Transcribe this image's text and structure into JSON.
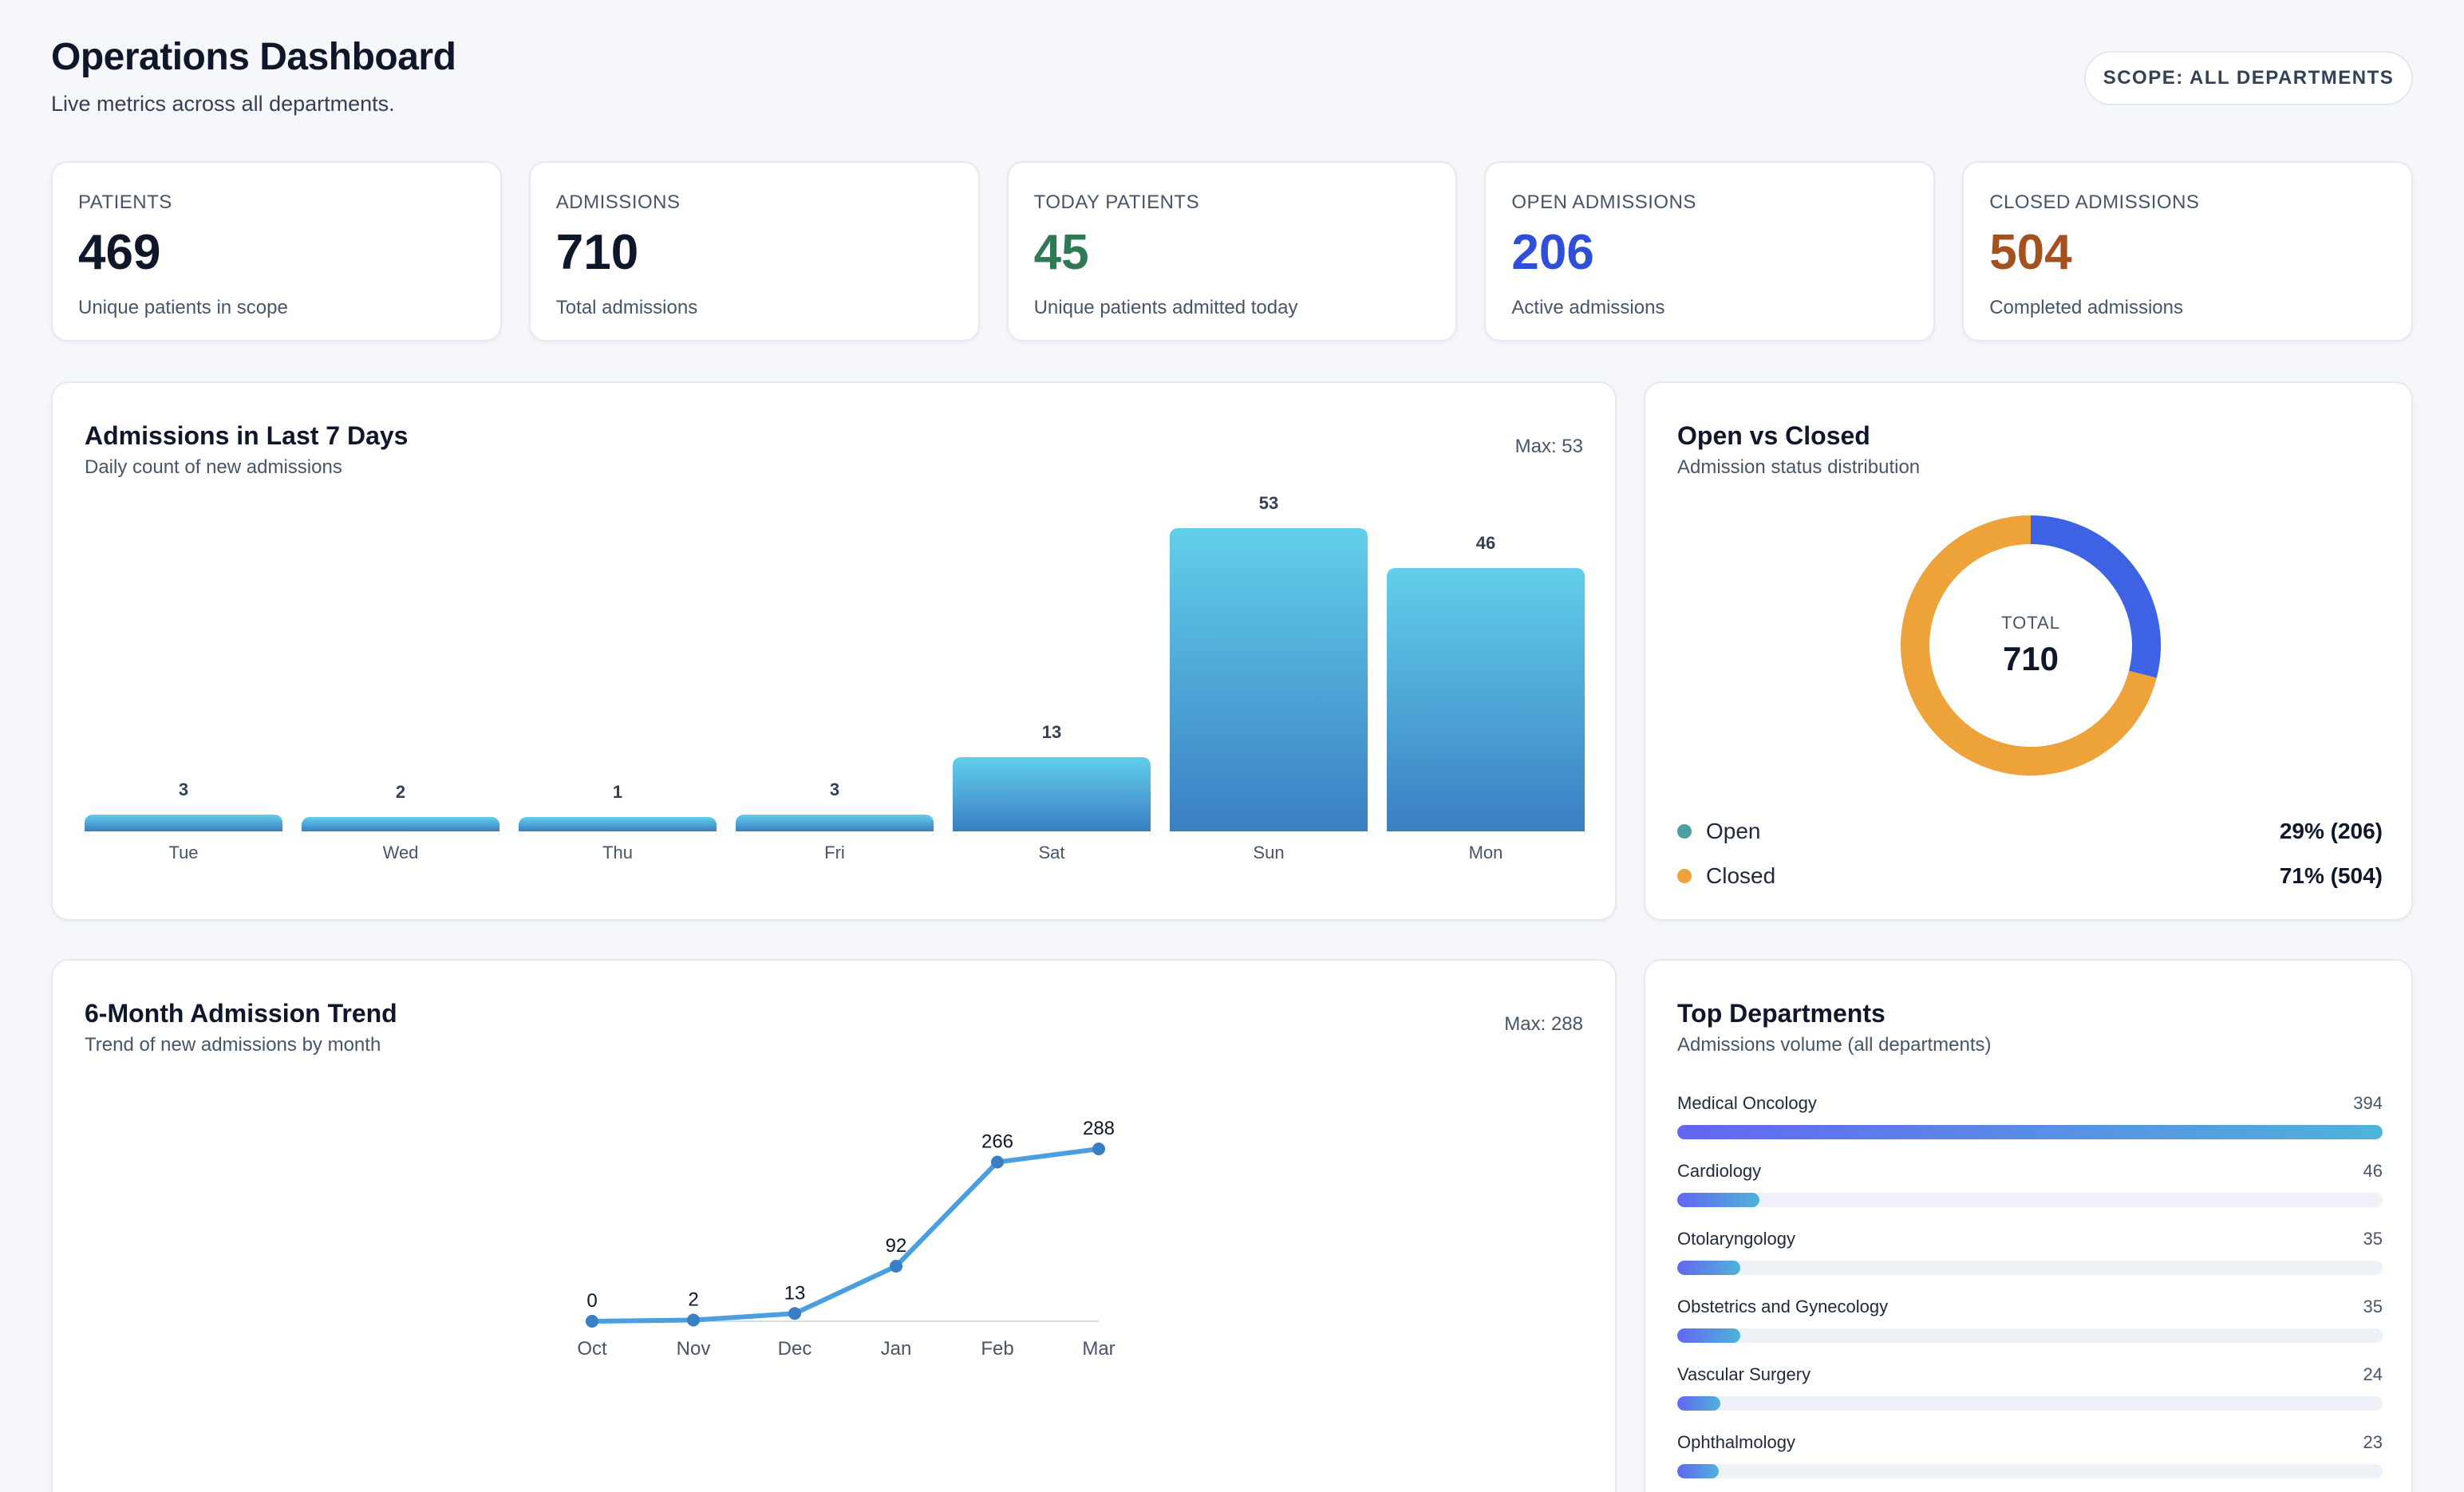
{
  "header": {
    "title": "Operations Dashboard",
    "subtitle": "Live metrics across all departments.",
    "scope_label": "SCOPE: ALL DEPARTMENTS"
  },
  "stats": [
    {
      "label": "PATIENTS",
      "value": "469",
      "desc": "Unique patients in scope",
      "color": "#0f172a"
    },
    {
      "label": "ADMISSIONS",
      "value": "710",
      "desc": "Total admissions",
      "color": "#0f172a"
    },
    {
      "label": "TODAY PATIENTS",
      "value": "45",
      "desc": "Unique patients admitted today",
      "color": "#2f7a55"
    },
    {
      "label": "OPEN ADMISSIONS",
      "value": "206",
      "desc": "Active admissions",
      "color": "#2f4fd8"
    },
    {
      "label": "CLOSED ADMISSIONS",
      "value": "504",
      "desc": "Completed admissions",
      "color": "#a3521f"
    }
  ],
  "admissions_7d": {
    "title": "Admissions in Last 7 Days",
    "subtitle": "Daily count of new admissions",
    "max_label": "Max: 53"
  },
  "status": {
    "title": "Open vs Closed",
    "subtitle": "Admission status distribution",
    "total_label": "TOTAL",
    "total": "710",
    "legend": [
      {
        "name": "Open",
        "value": "29% (206)",
        "dot_color": "#4b9fa3"
      },
      {
        "name": "Closed",
        "value": "71% (504)",
        "dot_color": "#eda23a"
      }
    ],
    "open_color": "#3d63e4",
    "closed_color": "#eda23a"
  },
  "trend": {
    "title": "6-Month Admission Trend",
    "subtitle": "Trend of new admissions by month",
    "max_label": "Max: 288"
  },
  "departments": {
    "title": "Top Departments",
    "subtitle": "Admissions volume (all departments)",
    "items": [
      {
        "name": "Medical Oncology",
        "value": 394
      },
      {
        "name": "Cardiology",
        "value": 46
      },
      {
        "name": "Otolaryngology",
        "value": 35
      },
      {
        "name": "Obstetrics and Gynecology",
        "value": 35
      },
      {
        "name": "Vascular Surgery",
        "value": 24
      },
      {
        "name": "Ophthalmology",
        "value": 23
      }
    ]
  },
  "chart_data": [
    {
      "type": "bar",
      "title": "Admissions in Last 7 Days",
      "categories": [
        "Tue",
        "Wed",
        "Thu",
        "Fri",
        "Sat",
        "Sun",
        "Mon"
      ],
      "values": [
        3,
        2,
        1,
        3,
        13,
        53,
        46
      ],
      "ylim": [
        0,
        53
      ]
    },
    {
      "type": "pie",
      "title": "Open vs Closed",
      "categories": [
        "Open",
        "Closed"
      ],
      "values": [
        206,
        504
      ]
    },
    {
      "type": "line",
      "title": "6-Month Admission Trend",
      "categories": [
        "Oct",
        "Nov",
        "Dec",
        "Jan",
        "Feb",
        "Mar"
      ],
      "values": [
        0,
        2,
        13,
        92,
        266,
        288
      ],
      "ylim": [
        0,
        288
      ]
    },
    {
      "type": "bar",
      "title": "Top Departments",
      "categories": [
        "Medical Oncology",
        "Cardiology",
        "Otolaryngology",
        "Obstetrics and Gynecology",
        "Vascular Surgery",
        "Ophthalmology"
      ],
      "values": [
        394,
        46,
        35,
        35,
        24,
        23
      ]
    }
  ]
}
